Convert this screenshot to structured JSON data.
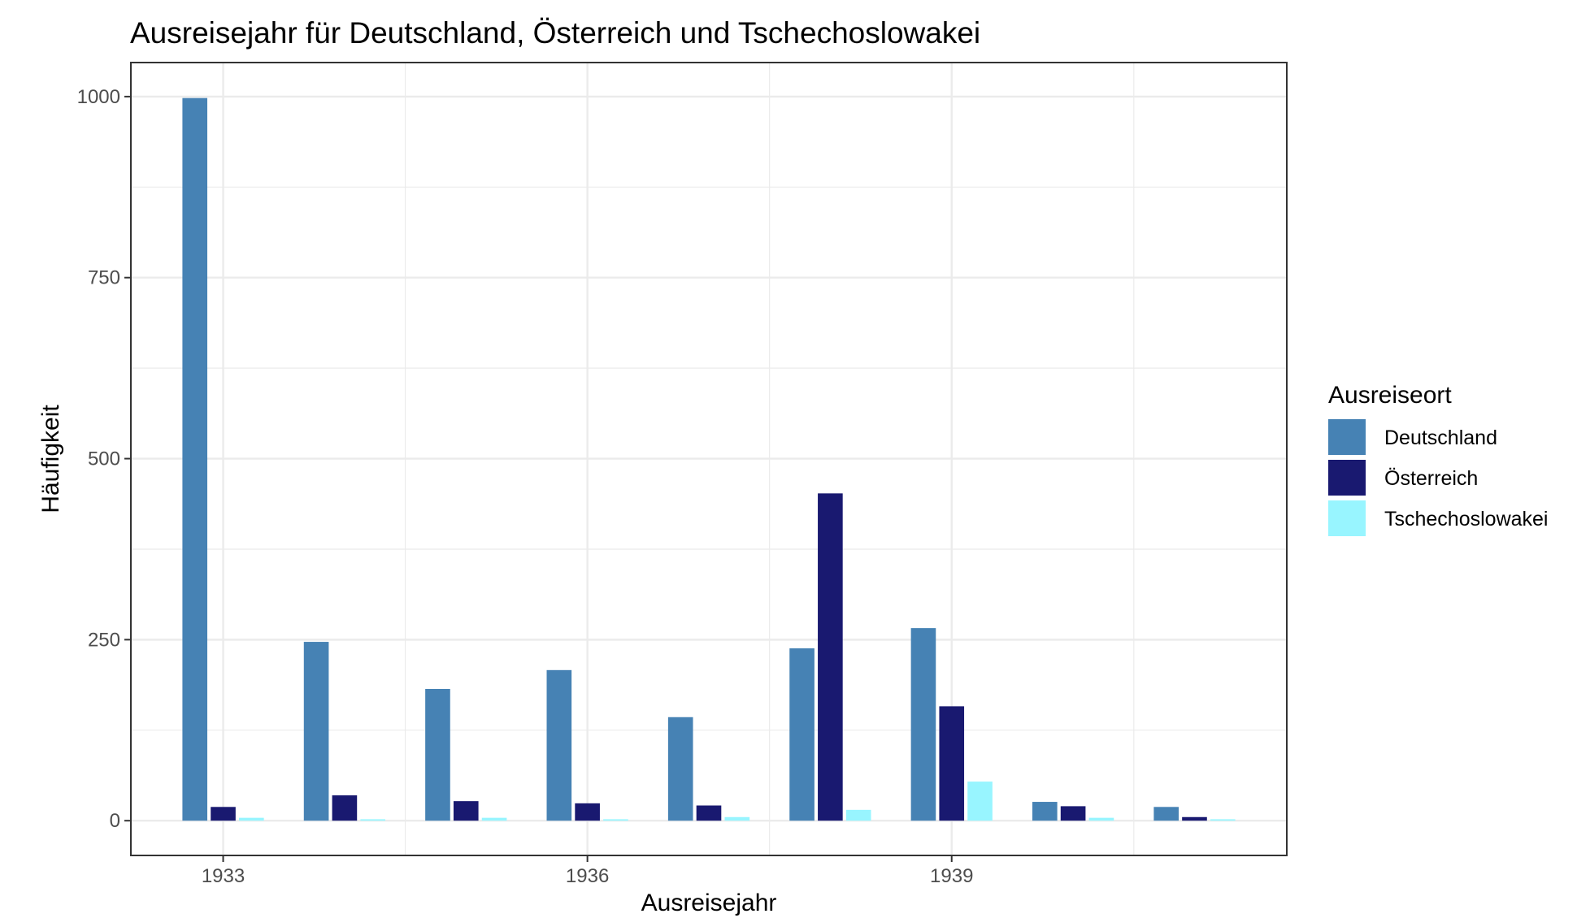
{
  "chart_data": {
    "type": "bar",
    "title": "Ausreisejahr für Deutschland, Österreich und Tschechoslowakei",
    "xlabel": "Ausreisejahr",
    "ylabel": "Häufigkeit",
    "categories": [
      1933,
      1934,
      1935,
      1936,
      1937,
      1938,
      1939,
      1940,
      1941
    ],
    "x_ticks": [
      "1933",
      "1936",
      "1939"
    ],
    "x_tick_values": [
      1933,
      1936,
      1939
    ],
    "y_ticks": [
      "0",
      "250",
      "500",
      "750",
      "1000"
    ],
    "y_tick_values": [
      0,
      250,
      500,
      750,
      1000
    ],
    "ylim": [
      -48,
      1047
    ],
    "xlim": [
      1932.24,
      1941.76
    ],
    "grid": true,
    "legend": {
      "title": "Ausreiseort",
      "position": "right"
    },
    "series": [
      {
        "name": "Deutschland",
        "color": "#4682B4",
        "values": [
          998,
          247,
          182,
          208,
          143,
          238,
          266,
          26,
          19
        ]
      },
      {
        "name": "Österreich",
        "color": "#191970",
        "values": [
          19,
          35,
          27,
          24,
          21,
          452,
          158,
          20,
          5
        ]
      },
      {
        "name": "Tschechoslowakei",
        "color": "#98F5FF",
        "values": [
          4,
          2,
          4,
          2,
          5,
          15,
          54,
          4,
          2
        ]
      }
    ]
  }
}
